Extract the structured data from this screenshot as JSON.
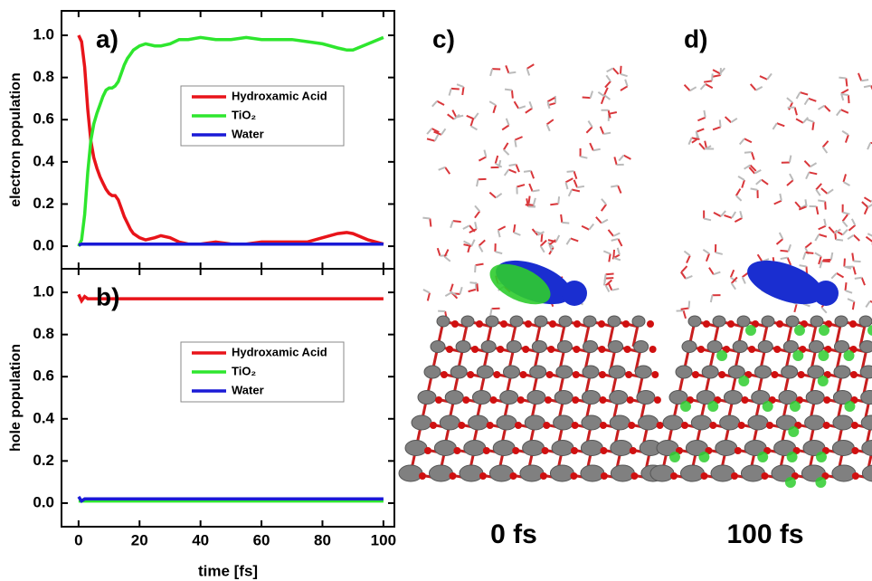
{
  "chart_data": [
    {
      "type": "line",
      "annotation": "a)",
      "ylabel": "electron population",
      "xlim": [
        -5.6,
        103.6
      ],
      "xticks": [
        0,
        20,
        40,
        60,
        80,
        100
      ],
      "ylim": [
        -0.107,
        1.116
      ],
      "yticks": [
        {
          "value": 0,
          "label": "0.0"
        },
        0.2,
        0.4,
        0.6,
        0.8,
        {
          "value": 1,
          "label": "1.0"
        }
      ],
      "legend": "center",
      "x": [
        0,
        1,
        2,
        3,
        4,
        5,
        6,
        7,
        8,
        9,
        10,
        11,
        12,
        13,
        14,
        15,
        16,
        17,
        18,
        20,
        22,
        25,
        27,
        30,
        33,
        36,
        40,
        45,
        50,
        55,
        60,
        65,
        70,
        75,
        80,
        85,
        88,
        90,
        95,
        100
      ],
      "series": [
        {
          "name": "Hydroxamic Acid",
          "color": "#e8141a",
          "values": [
            1.0,
            0.97,
            0.85,
            0.65,
            0.5,
            0.42,
            0.37,
            0.33,
            0.3,
            0.27,
            0.25,
            0.24,
            0.24,
            0.22,
            0.18,
            0.14,
            0.11,
            0.08,
            0.06,
            0.04,
            0.03,
            0.04,
            0.05,
            0.04,
            0.02,
            0.01,
            0.01,
            0.02,
            0.01,
            0.01,
            0.02,
            0.02,
            0.02,
            0.02,
            0.04,
            0.06,
            0.065,
            0.06,
            0.03,
            0.01
          ]
        },
        {
          "name": "TiO₂",
          "color": "#2ee62e",
          "values": [
            0.0,
            0.03,
            0.15,
            0.35,
            0.5,
            0.58,
            0.63,
            0.67,
            0.71,
            0.74,
            0.75,
            0.75,
            0.76,
            0.78,
            0.82,
            0.86,
            0.89,
            0.91,
            0.93,
            0.95,
            0.96,
            0.95,
            0.95,
            0.96,
            0.98,
            0.98,
            0.99,
            0.98,
            0.98,
            0.99,
            0.98,
            0.98,
            0.98,
            0.97,
            0.96,
            0.94,
            0.93,
            0.93,
            0.96,
            0.99
          ]
        },
        {
          "name": "Water",
          "color": "#1a1ad6",
          "values": [
            0.005,
            0.01,
            0.01,
            0.01,
            0.01,
            0.01,
            0.01,
            0.01,
            0.01,
            0.01,
            0.01,
            0.01,
            0.01,
            0.01,
            0.01,
            0.01,
            0.01,
            0.01,
            0.01,
            0.01,
            0.01,
            0.01,
            0.01,
            0.01,
            0.01,
            0.01,
            0.01,
            0.01,
            0.01,
            0.01,
            0.01,
            0.01,
            0.01,
            0.01,
            0.01,
            0.01,
            0.01,
            0.01,
            0.01,
            0.01
          ]
        }
      ]
    },
    {
      "type": "line",
      "annotation": "b)",
      "ylabel": "hole population",
      "xlabel": "time [fs]",
      "xlim": [
        -5.6,
        103.6
      ],
      "xticks": [
        0,
        20,
        40,
        60,
        80,
        100
      ],
      "ylim": [
        -0.112,
        1.112
      ],
      "yticks": [
        {
          "value": 0,
          "label": "0.0"
        },
        0.2,
        0.4,
        0.6,
        0.8,
        {
          "value": 1,
          "label": "1.0"
        }
      ],
      "legend": "center",
      "x": [
        0,
        1,
        2,
        3,
        5,
        10,
        20,
        40,
        60,
        80,
        100
      ],
      "series": [
        {
          "name": "Hydroxamic Acid",
          "color": "#e8141a",
          "values": [
            0.99,
            0.96,
            0.98,
            0.97,
            0.97,
            0.97,
            0.97,
            0.97,
            0.97,
            0.97,
            0.97
          ]
        },
        {
          "name": "TiO₂",
          "color": "#2ee62e",
          "values": [
            0.01,
            0.01,
            0.01,
            0.01,
            0.01,
            0.01,
            0.01,
            0.01,
            0.01,
            0.01,
            0.01
          ]
        },
        {
          "name": "Water",
          "color": "#1a1ad6",
          "values": [
            0.03,
            0.01,
            0.02,
            0.02,
            0.02,
            0.02,
            0.02,
            0.02,
            0.02,
            0.02,
            0.02
          ]
        }
      ]
    }
  ],
  "images": [
    {
      "label": "c)",
      "caption": "0 fs"
    },
    {
      "label": "d)",
      "caption": "100 fs"
    }
  ]
}
